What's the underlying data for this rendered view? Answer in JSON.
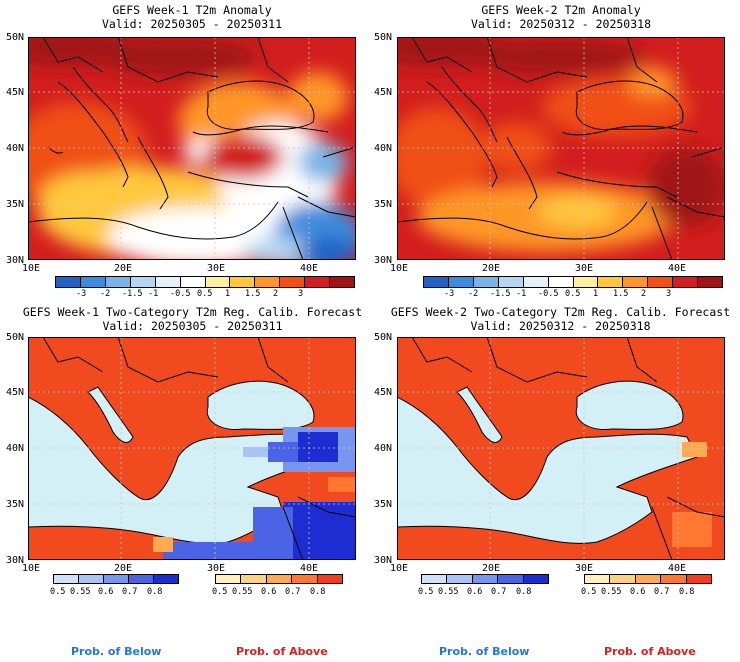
{
  "panels": [
    {
      "title": "GEFS Week-1 T2m Anomaly",
      "valid": "Valid: 20250305 - 20250311"
    },
    {
      "title": "GEFS Week-2 T2m Anomaly",
      "valid": "Valid: 20250312 - 20250318"
    },
    {
      "title": "GEFS Week-1 Two-Category T2m Reg. Calib. Forecast",
      "valid": "Valid: 20250305 - 20250311"
    },
    {
      "title": "GEFS Week-2 Two-Category T2m Reg. Calib. Forecast",
      "valid": "Valid: 20250312 - 20250318"
    }
  ],
  "axes": {
    "lat_labels": [
      "50N",
      "45N",
      "40N",
      "35N",
      "30N"
    ],
    "lon_labels": [
      "10E",
      "20E",
      "30E",
      "40E"
    ]
  },
  "anomaly_colorbar": {
    "labels": [
      "-3",
      "-2",
      "-1.5",
      "-1",
      "-0.5",
      "0.5",
      "1",
      "1.5",
      "2",
      "3"
    ],
    "colors": [
      "#1e64c8",
      "#3c8cdc",
      "#78b4e6",
      "#b4d7f0",
      "#e6f0fa",
      "#ffffff",
      "#fff0a0",
      "#ffc83c",
      "#ff9628",
      "#f05014",
      "#d21e1e",
      "#a01414"
    ]
  },
  "prob_below": {
    "labels": [
      "0.5",
      "0.55",
      "0.6",
      "0.7",
      "0.8"
    ],
    "colors": [
      "#d2e1fa",
      "#aac3f5",
      "#7896f0",
      "#4b64e6",
      "#1e2dd2"
    ]
  },
  "prob_above": {
    "labels": [
      "0.5",
      "0.55",
      "0.6",
      "0.7",
      "0.8"
    ],
    "colors": [
      "#fff0be",
      "#ffd282",
      "#ffaa50",
      "#ff7832",
      "#f53c1e"
    ]
  },
  "footer": {
    "below": "Prob. of Below",
    "above": "Prob. of Above"
  },
  "colors": {
    "below_text": "#1e78dc",
    "above_text": "#dc1e1e",
    "sea": "#d2f0f5",
    "land_above": "#f04a1e"
  }
}
